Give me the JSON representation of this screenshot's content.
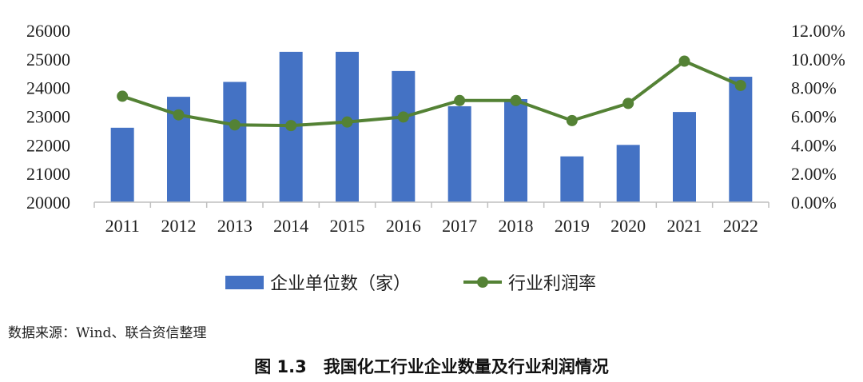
{
  "chart_data": {
    "type": "bar+line",
    "categories": [
      "2011",
      "2012",
      "2013",
      "2014",
      "2015",
      "2016",
      "2017",
      "2018",
      "2019",
      "2020",
      "2021",
      "2022"
    ],
    "series": [
      {
        "name": "企业单位数（家）",
        "type": "bar",
        "axis": "left",
        "color": "#4472C4",
        "values": [
          22600,
          23680,
          24200,
          25250,
          25250,
          24580,
          23350,
          23600,
          21600,
          22000,
          23150,
          24380
        ]
      },
      {
        "name": "行业利润率",
        "type": "line",
        "axis": "right",
        "color": "#548235",
        "values": [
          7.4,
          6.1,
          5.4,
          5.35,
          5.6,
          5.95,
          7.1,
          7.1,
          5.7,
          6.9,
          9.85,
          8.15
        ]
      }
    ],
    "y_left": {
      "min": 20000,
      "max": 26000,
      "ticks": [
        "20000",
        "21000",
        "22000",
        "23000",
        "24000",
        "25000",
        "26000"
      ]
    },
    "y_right": {
      "min": 0,
      "max": 12,
      "ticks": [
        "0.00%",
        "2.00%",
        "4.00%",
        "6.00%",
        "8.00%",
        "10.00%",
        "12.00%"
      ]
    },
    "grid": false,
    "legend_position": "bottom"
  },
  "source_text": "数据来源：Wind、联合资信整理",
  "caption": "图 1.3　我国化工行业企业数量及行业利润情况"
}
